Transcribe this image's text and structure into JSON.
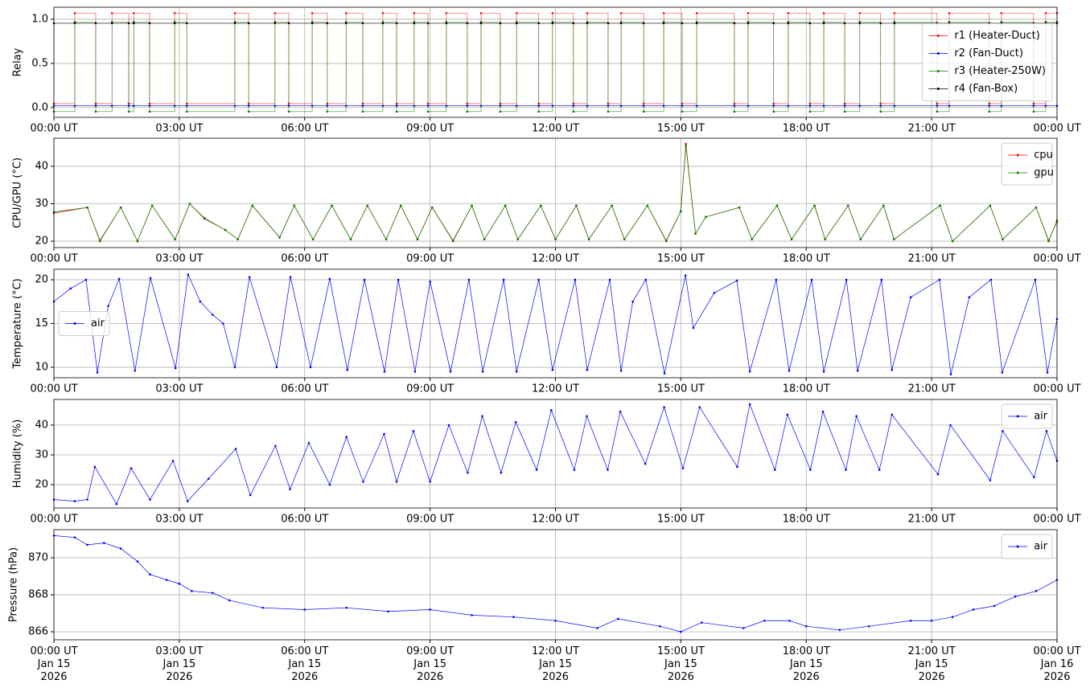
{
  "chart_data": [
    {
      "type": "line",
      "drawstyle": "steps-post",
      "ylabel": "Relay",
      "grid": true,
      "legend": "center right",
      "xlim": [
        0,
        24
      ],
      "ylim": [
        -0.11,
        1.136
      ],
      "xticks": [
        {
          "value": 0,
          "label": "00:00 UT"
        },
        {
          "value": 3,
          "label": "03:00 UT"
        },
        {
          "value": 6,
          "label": "06:00 UT"
        },
        {
          "value": 9,
          "label": "09:00 UT"
        },
        {
          "value": 12,
          "label": "12:00 UT"
        },
        {
          "value": 15,
          "label": "15:00 UT"
        },
        {
          "value": 18,
          "label": "18:00 UT"
        },
        {
          "value": 21,
          "label": "21:00 UT"
        },
        {
          "value": 24,
          "label": "00:00 UT"
        }
      ],
      "yticks": [
        {
          "value": 0,
          "label": "0.0"
        },
        0.5,
        {
          "value": 1,
          "label": "1.0"
        }
      ],
      "x": [
        0,
        0.5,
        1.0,
        1.39,
        1.79,
        1.91,
        2.29,
        2.89,
        3.18,
        4.33,
        4.66,
        5.29,
        5.62,
        6.18,
        6.54,
        6.99,
        7.39,
        7.87,
        8.2,
        8.62,
        8.95,
        9.39,
        9.89,
        10.22,
        10.68,
        11.07,
        11.6,
        11.93,
        12.43,
        12.76,
        13.26,
        13.57,
        14.11,
        14.59,
        15.03,
        15.38,
        16.28,
        16.61,
        17.22,
        17.57,
        18.09,
        18.42,
        18.92,
        19.28,
        19.78,
        20.11,
        21.13,
        21.42,
        22.38,
        22.67,
        23.44,
        23.73,
        24
      ],
      "series": [
        {
          "name": "r1 (Heater-Duct)",
          "color": "#ff0000",
          "values": [
            0.045,
            1.07,
            0.045,
            1.07,
            0.045,
            1.07,
            0.045,
            1.07,
            0.045,
            1.07,
            0.045,
            1.07,
            0.045,
            1.07,
            0.045,
            1.07,
            0.045,
            1.07,
            0.045,
            1.07,
            0.045,
            1.07,
            0.045,
            1.07,
            0.045,
            1.07,
            0.045,
            1.07,
            0.045,
            1.07,
            0.045,
            1.07,
            0.045,
            1.07,
            0.045,
            1.07,
            0.045,
            1.07,
            0.045,
            1.07,
            0.045,
            1.07,
            0.045,
            1.07,
            0.045,
            1.07,
            0.045,
            1.07,
            0.045,
            1.07,
            0.045,
            1.07,
            1.07
          ]
        },
        {
          "name": "r2 (Fan-Duct)",
          "color": "#0000ff",
          "values": [
            0.02,
            0.02,
            0.02,
            0.02,
            0.02,
            0.02,
            0.02,
            0.02,
            0.02,
            0.02,
            0.02,
            0.02,
            0.02,
            0.02,
            0.02,
            0.02,
            0.02,
            0.02,
            0.02,
            0.02,
            0.02,
            0.02,
            0.02,
            0.02,
            0.02,
            0.02,
            0.02,
            0.02,
            0.02,
            0.02,
            0.02,
            0.02,
            0.02,
            0.02,
            0.02,
            0.02,
            0.02,
            0.02,
            0.02,
            0.02,
            0.02,
            0.02,
            0.02,
            0.02,
            0.02,
            0.02,
            0.02,
            0.02,
            0.02,
            0.02,
            0.02,
            0.02,
            0.02
          ]
        },
        {
          "name": "r3 (Heater-250W)",
          "color": "#008000",
          "values": [
            -0.045,
            0.97,
            -0.045,
            0.97,
            -0.045,
            0.97,
            -0.045,
            0.97,
            -0.045,
            0.97,
            -0.045,
            0.97,
            -0.045,
            0.97,
            -0.045,
            0.97,
            -0.045,
            0.97,
            -0.045,
            0.97,
            -0.045,
            0.97,
            -0.045,
            0.97,
            -0.045,
            0.97,
            -0.045,
            0.97,
            -0.045,
            0.97,
            -0.045,
            0.97,
            -0.045,
            0.97,
            -0.045,
            0.97,
            -0.045,
            0.97,
            -0.045,
            0.97,
            -0.045,
            0.97,
            -0.045,
            0.97,
            -0.045,
            0.97,
            -0.045,
            0.97,
            -0.045,
            0.97,
            -0.045,
            0.97,
            0.97
          ]
        },
        {
          "name": "r4 (Fan-Box)",
          "color": "#000000",
          "values": [
            0.955,
            0.955,
            0.955,
            0.955,
            0.955,
            0.955,
            0.955,
            0.955,
            0.955,
            0.955,
            0.955,
            0.955,
            0.955,
            0.955,
            0.955,
            0.955,
            0.955,
            0.955,
            0.955,
            0.955,
            0.955,
            0.955,
            0.955,
            0.955,
            0.955,
            0.955,
            0.955,
            0.955,
            0.955,
            0.955,
            0.955,
            0.955,
            0.955,
            0.955,
            0.955,
            0.955,
            0.955,
            0.955,
            0.955,
            0.955,
            0.955,
            0.955,
            0.955,
            0.955,
            0.955,
            0.955,
            0.955,
            0.955,
            0.955,
            0.955,
            0.955,
            0.955,
            0.955
          ]
        }
      ]
    },
    {
      "type": "line",
      "ylabel": "CPU/GPU (°C)",
      "grid": true,
      "legend": "upper right",
      "xlim": [
        0,
        24
      ],
      "ylim": [
        18.3,
        47.5
      ],
      "xticks": [
        {
          "value": 0,
          "label": "00:00 UT"
        },
        {
          "value": 3,
          "label": "03:00 UT"
        },
        {
          "value": 6,
          "label": "06:00 UT"
        },
        {
          "value": 9,
          "label": "09:00 UT"
        },
        {
          "value": 12,
          "label": "12:00 UT"
        },
        {
          "value": 15,
          "label": "15:00 UT"
        },
        {
          "value": 18,
          "label": "18:00 UT"
        },
        {
          "value": 21,
          "label": "21:00 UT"
        },
        {
          "value": 24,
          "label": "00:00 UT"
        }
      ],
      "yticks": [
        20,
        30,
        40
      ],
      "x": [
        0,
        0.8,
        1.1,
        1.6,
        2.0,
        2.35,
        2.9,
        3.25,
        3.6,
        4.1,
        4.4,
        4.75,
        5.4,
        5.75,
        6.2,
        6.65,
        7.1,
        7.5,
        7.95,
        8.3,
        8.7,
        9.05,
        9.55,
        10.0,
        10.3,
        10.8,
        11.1,
        11.65,
        12.0,
        12.5,
        12.8,
        13.35,
        13.65,
        14.2,
        14.65,
        15.0,
        15.12,
        15.35,
        15.6,
        16.4,
        16.7,
        17.3,
        17.65,
        18.2,
        18.45,
        19.0,
        19.3,
        19.85,
        20.1,
        21.2,
        21.5,
        22.4,
        22.7,
        23.5,
        23.8,
        24
      ],
      "series": [
        {
          "name": "cpu",
          "color": "#ff0000",
          "values": [
            27.5,
            29,
            20,
            29,
            20,
            29.5,
            20.5,
            30,
            26,
            23,
            20.5,
            29.5,
            21,
            29.5,
            20.5,
            29.5,
            20.5,
            29.5,
            20.5,
            29.5,
            20.5,
            29,
            20,
            29.5,
            20.5,
            29.5,
            20.5,
            29.5,
            20.5,
            29.5,
            20.5,
            29.5,
            20.5,
            29.5,
            20,
            28,
            46,
            22,
            26.5,
            29,
            20.5,
            29.5,
            20.5,
            29.5,
            20.5,
            29.5,
            20.5,
            29.5,
            20.5,
            29.5,
            20,
            29.5,
            20.5,
            29,
            20,
            25.5
          ]
        },
        {
          "name": "gpu",
          "color": "#008000",
          "values": [
            27.8,
            29,
            20.2,
            29,
            20,
            29.5,
            20.5,
            30,
            26.2,
            23,
            20.5,
            29.5,
            21,
            29.5,
            20.5,
            29.5,
            20.5,
            29.5,
            20.5,
            29.5,
            20.5,
            29,
            20.2,
            29.5,
            20.5,
            29.5,
            20.5,
            29.5,
            20.5,
            29.5,
            20.5,
            29.5,
            20.5,
            29.5,
            20.2,
            28,
            45.5,
            22,
            26.5,
            29,
            20.5,
            29.5,
            20.5,
            29.5,
            20.5,
            29.5,
            20.5,
            29.5,
            20.5,
            29.5,
            20,
            29.5,
            20.5,
            29,
            20.2,
            25.2
          ]
        }
      ]
    },
    {
      "type": "line",
      "ylabel": "Temperature (°C)",
      "grid": true,
      "legend": "center left",
      "xlim": [
        0,
        24
      ],
      "ylim": [
        8.8,
        21.2
      ],
      "xticks": [
        {
          "value": 0,
          "label": "00:00 UT"
        },
        {
          "value": 3,
          "label": "03:00 UT"
        },
        {
          "value": 6,
          "label": "06:00 UT"
        },
        {
          "value": 9,
          "label": "09:00 UT"
        },
        {
          "value": 12,
          "label": "12:00 UT"
        },
        {
          "value": 15,
          "label": "15:00 UT"
        },
        {
          "value": 18,
          "label": "18:00 UT"
        },
        {
          "value": 21,
          "label": "21:00 UT"
        },
        {
          "value": 24,
          "label": "00:00 UT"
        }
      ],
      "yticks": [
        10,
        15,
        20
      ],
      "x": [
        0,
        0.4,
        0.77,
        1.04,
        1.3,
        1.56,
        1.94,
        2.31,
        2.91,
        3.21,
        3.5,
        3.8,
        4.05,
        4.33,
        4.68,
        5.33,
        5.66,
        6.14,
        6.6,
        7.02,
        7.43,
        7.91,
        8.24,
        8.64,
        9.0,
        9.49,
        9.93,
        10.26,
        10.76,
        11.07,
        11.6,
        11.93,
        12.47,
        12.76,
        13.3,
        13.57,
        13.85,
        14.16,
        14.61,
        15.11,
        15.3,
        15.8,
        16.34,
        16.65,
        17.28,
        17.59,
        18.13,
        18.42,
        18.96,
        19.23,
        19.8,
        20.05,
        20.5,
        21.19,
        21.46,
        21.9,
        22.42,
        22.69,
        23.48,
        23.77,
        24
      ],
      "series": [
        {
          "name": "air",
          "color": "#0000ff",
          "values": [
            17.5,
            19,
            20,
            9.4,
            17,
            20.1,
            9.6,
            20.2,
            9.9,
            20.6,
            17.5,
            16,
            15,
            10,
            20.3,
            10,
            20.3,
            10,
            20.1,
            9.7,
            20,
            9.5,
            20,
            9.5,
            19.8,
            9.5,
            20,
            9.5,
            20,
            9.5,
            20,
            9.7,
            20,
            9.7,
            20,
            9.6,
            17.5,
            20,
            9.3,
            20.5,
            14.5,
            18.5,
            19.9,
            9.5,
            20,
            9.6,
            20,
            9.5,
            20,
            9.6,
            20,
            9.7,
            18,
            20,
            9.2,
            18,
            20,
            9.4,
            20,
            9.4,
            15.5
          ]
        }
      ]
    },
    {
      "type": "line",
      "ylabel": "Humidity (%)",
      "grid": true,
      "legend": "upper right",
      "xlim": [
        0,
        24
      ],
      "ylim": [
        12.2,
        48.6
      ],
      "xticks": [
        {
          "value": 0,
          "label": "00:00 UT"
        },
        {
          "value": 3,
          "label": "03:00 UT"
        },
        {
          "value": 6,
          "label": "06:00 UT"
        },
        {
          "value": 9,
          "label": "09:00 UT"
        },
        {
          "value": 12,
          "label": "12:00 UT"
        },
        {
          "value": 15,
          "label": "15:00 UT"
        },
        {
          "value": 18,
          "label": "18:00 UT"
        },
        {
          "value": 21,
          "label": "21:00 UT"
        },
        {
          "value": 24,
          "label": "00:00 UT"
        }
      ],
      "yticks": [
        20,
        30,
        40
      ],
      "x": [
        0,
        0.5,
        0.8,
        0.98,
        1.5,
        1.85,
        2.3,
        2.85,
        3.2,
        3.7,
        4.35,
        4.7,
        5.3,
        5.65,
        6.1,
        6.6,
        7.0,
        7.4,
        7.9,
        8.2,
        8.6,
        9.0,
        9.45,
        9.9,
        10.25,
        10.7,
        11.05,
        11.55,
        11.9,
        12.45,
        12.75,
        13.25,
        13.55,
        14.15,
        14.6,
        15.05,
        15.45,
        16.35,
        16.65,
        17.25,
        17.55,
        18.1,
        18.4,
        18.95,
        19.2,
        19.75,
        20.05,
        21.15,
        21.45,
        22.4,
        22.7,
        23.45,
        23.75,
        24
      ],
      "series": [
        {
          "name": "air",
          "color": "#0000ff",
          "values": [
            15,
            14.5,
            15,
            26,
            13.5,
            25.5,
            15,
            28,
            14.5,
            22,
            32,
            16.5,
            33,
            18.5,
            34,
            20,
            36,
            21,
            37,
            21,
            38,
            21,
            40,
            24,
            43,
            24,
            41,
            25,
            45,
            25,
            43,
            25,
            44.5,
            27,
            46,
            25.5,
            46,
            26,
            47,
            25,
            43.5,
            25,
            44.5,
            25,
            43,
            25,
            43.5,
            23.5,
            40,
            21.5,
            38,
            22.5,
            38,
            28
          ]
        }
      ]
    },
    {
      "type": "line",
      "ylabel": "Pressure (hPa)",
      "grid": true,
      "legend": "upper right",
      "xlim": [
        0,
        24
      ],
      "ylim": [
        865.57,
        871.52
      ],
      "xticks": [
        {
          "value": 0,
          "label": "00:00 UT\nJan 15\n2026"
        },
        {
          "value": 3,
          "label": "03:00 UT\nJan 15\n2026"
        },
        {
          "value": 6,
          "label": "06:00 UT\nJan 15\n2026"
        },
        {
          "value": 9,
          "label": "09:00 UT\nJan 15\n2026"
        },
        {
          "value": 12,
          "label": "12:00 UT\nJan 15\n2026"
        },
        {
          "value": 15,
          "label": "15:00 UT\nJan 15\n2026"
        },
        {
          "value": 18,
          "label": "18:00 UT\nJan 15\n2026"
        },
        {
          "value": 21,
          "label": "21:00 UT\nJan 15\n2026"
        },
        {
          "value": 24,
          "label": "00:00 UT\nJan 16\n2026"
        }
      ],
      "yticks": [
        866,
        868,
        870
      ],
      "x": [
        0,
        0.5,
        0.8,
        1.2,
        1.6,
        2.0,
        2.3,
        2.7,
        3.0,
        3.3,
        3.8,
        4.2,
        5.0,
        6.0,
        7.0,
        8.0,
        9.0,
        10.0,
        11.0,
        12.0,
        13.0,
        13.5,
        14.5,
        15.0,
        15.5,
        16.5,
        17.0,
        17.6,
        18.0,
        18.8,
        19.5,
        20.5,
        21.0,
        21.5,
        22.0,
        22.5,
        23.0,
        23.5,
        24
      ],
      "series": [
        {
          "name": "air",
          "color": "#0000ff",
          "values": [
            871.2,
            871.1,
            870.7,
            870.8,
            870.5,
            869.8,
            869.1,
            868.8,
            868.6,
            868.2,
            868.1,
            867.7,
            867.3,
            867.2,
            867.3,
            867.1,
            867.2,
            866.9,
            866.8,
            866.6,
            866.2,
            866.7,
            866.3,
            866.0,
            866.5,
            866.2,
            866.6,
            866.6,
            866.3,
            866.1,
            866.3,
            866.6,
            866.6,
            866.8,
            867.2,
            867.4,
            867.9,
            868.2,
            868.8
          ]
        }
      ]
    }
  ]
}
